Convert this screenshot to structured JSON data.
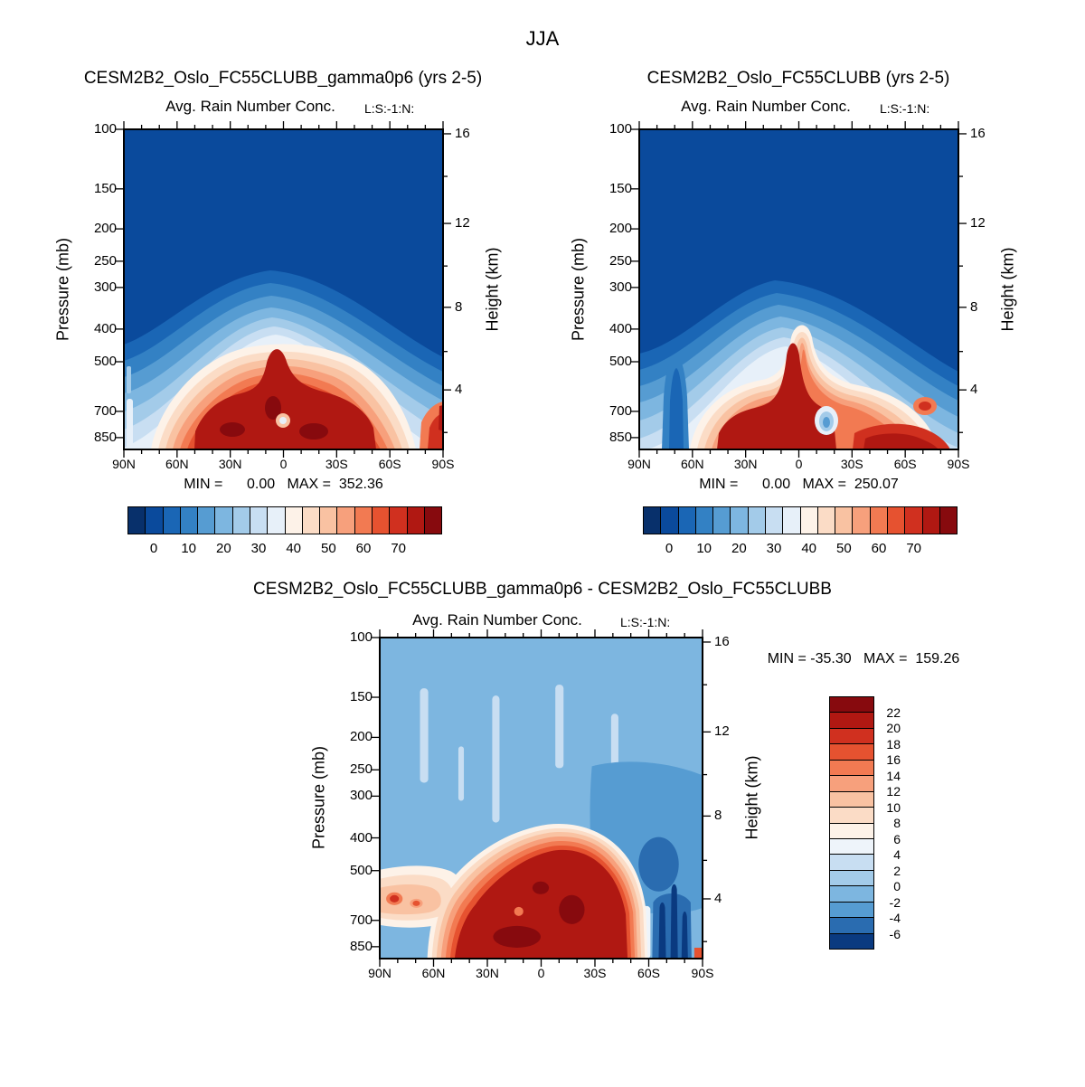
{
  "figure_title": "JJA",
  "colors": {
    "frame": "#000000",
    "background": "#ffffff",
    "palette18": [
      "#08306b",
      "#0a4a9c",
      "#1a66b5",
      "#3381c4",
      "#569cd2",
      "#7db6e0",
      "#a3cbe9",
      "#c8def2",
      "#e7f0f9",
      "#fdf2e8",
      "#fbdcc6",
      "#f9c2a2",
      "#f7a07c",
      "#f27a52",
      "#e65230",
      "#d0301f",
      "#b01812",
      "#870a0e"
    ],
    "palette16": [
      "#870a0e",
      "#b01812",
      "#d0301f",
      "#e65230",
      "#f27a52",
      "#f7a07c",
      "#f9c2a2",
      "#fbdcc6",
      "#fdf2e8",
      "#eef4fa",
      "#c8def2",
      "#a3cbe9",
      "#7db6e0",
      "#569cd2",
      "#2a6cb0",
      "#0a3a80"
    ]
  },
  "axes": {
    "pressure_label": "Pressure (mb)",
    "height_label": "Height (km)",
    "pressure_ticks": [
      "100",
      "150",
      "200",
      "250",
      "300",
      "400",
      "500",
      "700",
      "850"
    ],
    "height_ticks": [
      "16",
      "12",
      "8",
      "4"
    ],
    "lat_ticks": [
      "90N",
      "60N",
      "30N",
      "0",
      "30S",
      "60S",
      "90S"
    ]
  },
  "colorbar_top_labels": [
    "0",
    "10",
    "20",
    "30",
    "40",
    "50",
    "60",
    "70"
  ],
  "colorbar_diff_labels": [
    "22",
    "20",
    "18",
    "16",
    "14",
    "12",
    "10",
    "8",
    "6",
    "4",
    "2",
    "0",
    "-2",
    "-4",
    "-6"
  ],
  "panels": [
    {
      "title": "CESM2B2_Oslo_FC55CLUBB_gamma0p6 (yrs 2-5)",
      "subtitle": "Avg. Rain Number Conc.",
      "corner_label": "L:S:-1:N:",
      "stats": "MIN =      0.00   MAX =  352.36"
    },
    {
      "title": "CESM2B2_Oslo_FC55CLUBB (yrs 2-5)",
      "subtitle": "Avg. Rain Number Conc.",
      "corner_label": "L:S:-1:N:",
      "stats": "MIN =      0.00   MAX =  250.07"
    },
    {
      "title": "CESM2B2_Oslo_FC55CLUBB_gamma0p6 - CESM2B2_Oslo_FC55CLUBB",
      "subtitle": "Avg. Rain Number Conc.",
      "corner_label": "L:S:-1:N:",
      "stats": "MIN = -35.30   MAX =  159.26"
    }
  ],
  "chart_data": [
    {
      "type": "heatmap",
      "panel": "top-left",
      "title": "CESM2B2_Oslo_FC55CLUBB_gamma0p6 (yrs 2-5)",
      "field": "Avg. Rain Number Conc.",
      "season": "JJA",
      "corner_label": "L:S:-1:N:",
      "x_ticks": [
        "90N",
        "60N",
        "30N",
        "0",
        "30S",
        "60S",
        "90S"
      ],
      "y_left_label": "Pressure (mb)",
      "y_left_ticks_mb": [
        100,
        150,
        200,
        250,
        300,
        400,
        500,
        700,
        850
      ],
      "y_right_label": "Height (km)",
      "y_right_ticks_km": [
        16,
        12,
        8,
        4
      ],
      "min": 0.0,
      "max": 352.36,
      "colorbar_labels": [
        0,
        10,
        20,
        30,
        40,
        50,
        60,
        70
      ],
      "palette": "blue-white-red, 18 boxes",
      "structure": "Very low values (deep blue) everywhere above ~300 mb; concentric bands increase toward the surface between 60N and 60S; broad maximum (>70, dark red) from ~55N to ~35S below ~500 mb with an equatorial spike reaching ~400 mb; light-blue streaks at 90N near the surface; small warm patch at 90S near the surface."
    },
    {
      "type": "heatmap",
      "panel": "top-right",
      "title": "CESM2B2_Oslo_FC55CLUBB (yrs 2-5)",
      "field": "Avg. Rain Number Conc.",
      "season": "JJA",
      "corner_label": "L:S:-1:N:",
      "x_ticks": [
        "90N",
        "60N",
        "30N",
        "0",
        "30S",
        "60S",
        "90S"
      ],
      "y_left_label": "Pressure (mb)",
      "y_left_ticks_mb": [
        100,
        150,
        200,
        250,
        300,
        400,
        500,
        700,
        850
      ],
      "y_right_label": "Height (km)",
      "y_right_ticks_km": [
        16,
        12,
        8,
        4
      ],
      "min": 0.0,
      "max": 250.07,
      "colorbar_labels": [
        0,
        10,
        20,
        30,
        40,
        50,
        60,
        70
      ],
      "palette": "blue-white-red, 18 boxes",
      "structure": "Similar to gamma0p6 run but weaker and patchier: narrow red column near the equator up to ~400 mb, main red mass 50N-equator near the surface, low-value (blue) notch near 5-10S at ~700 mb, secondary red band 10S-50S along the surface, cold blue streak near 80N below 500 mb."
    },
    {
      "type": "heatmap",
      "panel": "bottom-difference",
      "title": "CESM2B2_Oslo_FC55CLUBB_gamma0p6 - CESM2B2_Oslo_FC55CLUBB",
      "field": "Avg. Rain Number Conc.",
      "season": "JJA",
      "corner_label": "L:S:-1:N:",
      "x_ticks": [
        "90N",
        "60N",
        "30N",
        "0",
        "30S",
        "60S",
        "90S"
      ],
      "y_left_label": "Pressure (mb)",
      "y_left_ticks_mb": [
        100,
        150,
        200,
        250,
        300,
        400,
        500,
        700,
        850
      ],
      "y_right_label": "Height (km)",
      "y_right_ticks_km": [
        16,
        12,
        8,
        4
      ],
      "min": -35.3,
      "max": 159.26,
      "contour_levels": [
        -6,
        -4,
        -2,
        0,
        2,
        4,
        6,
        8,
        10,
        12,
        14,
        16,
        18,
        20,
        22
      ],
      "palette": "blue-white-red, 16 boxes, vertical labelbar",
      "structure": "Background near zero (light-mid blue); pale-blue vertical streaks aloft 60N-30N; large positive difference (>22, dark red) from ~60N to ~30S below ~450 mb with orange band extending to 90N near 500-700 mb; strongly negative (dark navy) streaks near 60S below ~500 mb; slightly darker blue region 30S-90S in mid levels."
    }
  ]
}
